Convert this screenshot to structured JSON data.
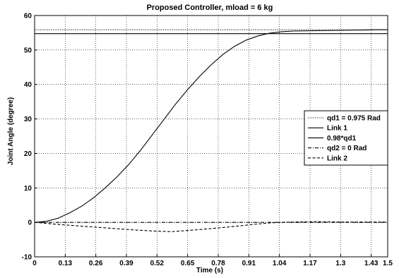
{
  "chart_data": {
    "type": "line",
    "title": "Proposed Controller, mload = 6 kg",
    "xlabel": "Time (s)",
    "ylabel": "Joint Angle (degree)",
    "xlim": [
      0,
      1.5
    ],
    "ylim": [
      -10,
      60
    ],
    "x_ticks": [
      "0",
      "0.13",
      "0.26",
      "0.39",
      "0.52",
      "0.65",
      "0.78",
      "0.91",
      "1.04",
      "1.17",
      "1.3",
      "1.43",
      "1.5"
    ],
    "x_tick_values": [
      0,
      0.13,
      0.26,
      0.39,
      0.52,
      0.65,
      0.78,
      0.91,
      1.04,
      1.17,
      1.3,
      1.43,
      1.5
    ],
    "y_ticks": [
      "-10",
      "0",
      "10",
      "20",
      "30",
      "40",
      "50",
      "60"
    ],
    "y_tick_values": [
      -10,
      0,
      10,
      20,
      30,
      40,
      50,
      60
    ],
    "grid": true,
    "legend_position": "right",
    "series": [
      {
        "name": "qd1 = 0.975 Rad",
        "style": "dotted",
        "x": [
          0,
          1.5
        ],
        "y": [
          55.86,
          55.86
        ]
      },
      {
        "name": "Link 1",
        "style": "solid",
        "x": [
          0,
          0.05,
          0.1,
          0.15,
          0.2,
          0.25,
          0.3,
          0.35,
          0.4,
          0.45,
          0.5,
          0.55,
          0.6,
          0.65,
          0.7,
          0.75,
          0.8,
          0.85,
          0.9,
          0.95,
          1.0,
          1.05,
          1.1,
          1.2,
          1.3,
          1.4,
          1.45,
          1.5
        ],
        "y": [
          0,
          0.3,
          1.2,
          2.8,
          4.7,
          7.1,
          10.0,
          13.2,
          16.8,
          20.9,
          25.4,
          29.9,
          34.4,
          38.5,
          42.3,
          45.7,
          48.7,
          51.1,
          52.9,
          54.1,
          54.9,
          55.3,
          55.5,
          55.6,
          55.7,
          55.8,
          55.9,
          55.9
        ]
      },
      {
        "name": "0.98*qd1",
        "style": "solid",
        "x": [
          0,
          1.5
        ],
        "y": [
          54.74,
          54.74
        ]
      },
      {
        "name": "qd2 = 0 Rad",
        "style": "dashdot",
        "x": [
          0,
          1.5
        ],
        "y": [
          0,
          0
        ]
      },
      {
        "name": "Link 2",
        "style": "dashed",
        "x": [
          0,
          0.1,
          0.2,
          0.3,
          0.4,
          0.5,
          0.58,
          0.7,
          0.8,
          0.9,
          1.0,
          1.05,
          1.1,
          1.2,
          1.3,
          1.4,
          1.5
        ],
        "y": [
          0,
          -0.6,
          -1.1,
          -1.6,
          -2.1,
          -2.5,
          -2.7,
          -2.1,
          -1.5,
          -0.8,
          -0.15,
          0.0,
          0.1,
          0.2,
          0.1,
          0.1,
          0.1
        ]
      }
    ]
  }
}
